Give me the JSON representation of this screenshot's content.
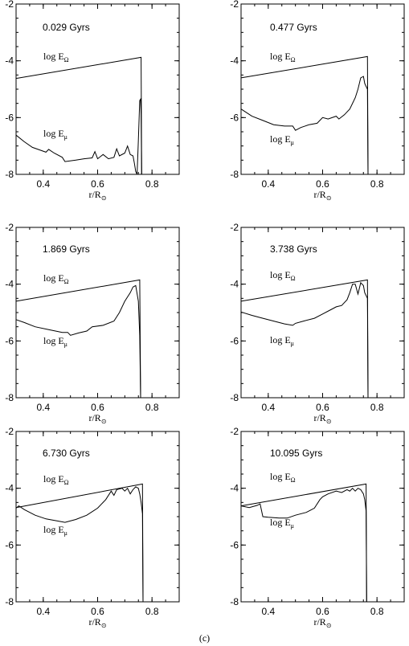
{
  "figure": {
    "caption": "(c)"
  },
  "chart_data": [
    {
      "type": "line",
      "annotation": "0.029 Gyrs",
      "xlabel": "r/R⊙",
      "xlim": [
        0.3,
        0.9
      ],
      "ylim": [
        -8,
        -2
      ],
      "xticks": [
        "0.4",
        "0.6",
        "0.8"
      ],
      "yticks": [
        "-2",
        "-4",
        "-6",
        "-8"
      ],
      "curve_labels": {
        "omega": "log EΩ",
        "mu": "log Eμ"
      },
      "series": [
        {
          "key": "omega",
          "points": [
            [
              0.3,
              -4.62
            ],
            [
              0.76,
              -3.88
            ],
            [
              0.762,
              -8.0
            ]
          ]
        },
        {
          "key": "mu",
          "points": [
            [
              0.3,
              -6.62
            ],
            [
              0.33,
              -6.85
            ],
            [
              0.36,
              -7.05
            ],
            [
              0.39,
              -7.15
            ],
            [
              0.41,
              -7.22
            ],
            [
              0.42,
              -7.12
            ],
            [
              0.44,
              -7.25
            ],
            [
              0.47,
              -7.4
            ],
            [
              0.48,
              -7.55
            ],
            [
              0.52,
              -7.5
            ],
            [
              0.55,
              -7.45
            ],
            [
              0.58,
              -7.42
            ],
            [
              0.59,
              -7.2
            ],
            [
              0.6,
              -7.45
            ],
            [
              0.62,
              -7.3
            ],
            [
              0.64,
              -7.45
            ],
            [
              0.66,
              -7.4
            ],
            [
              0.67,
              -7.1
            ],
            [
              0.68,
              -7.35
            ],
            [
              0.7,
              -7.25
            ],
            [
              0.71,
              -7.0
            ],
            [
              0.72,
              -7.3
            ],
            [
              0.73,
              -7.35
            ],
            [
              0.735,
              -7.6
            ],
            [
              0.74,
              -7.9
            ],
            [
              0.745,
              -8.0
            ],
            [
              0.75,
              -6.8
            ],
            [
              0.755,
              -5.4
            ],
            [
              0.758,
              -5.35
            ],
            [
              0.76,
              -5.9
            ],
            [
              0.762,
              -8.0
            ]
          ]
        }
      ]
    },
    {
      "type": "line",
      "annotation": "0.477 Gyrs",
      "xlabel": "r/R⊙",
      "xlim": [
        0.3,
        0.9
      ],
      "ylim": [
        -8,
        -2
      ],
      "xticks": [
        "0.4",
        "0.6",
        "0.8"
      ],
      "yticks": [
        "-2",
        "-4",
        "-6",
        "-8"
      ],
      "curve_labels": {
        "omega": "log EΩ",
        "mu": "log Eμ"
      },
      "series": [
        {
          "key": "omega",
          "points": [
            [
              0.3,
              -4.6
            ],
            [
              0.765,
              -3.85
            ],
            [
              0.767,
              -8.0
            ]
          ]
        },
        {
          "key": "mu",
          "points": [
            [
              0.3,
              -5.7
            ],
            [
              0.34,
              -5.95
            ],
            [
              0.38,
              -6.1
            ],
            [
              0.42,
              -6.25
            ],
            [
              0.46,
              -6.3
            ],
            [
              0.49,
              -6.3
            ],
            [
              0.5,
              -6.45
            ],
            [
              0.52,
              -6.35
            ],
            [
              0.55,
              -6.25
            ],
            [
              0.58,
              -6.2
            ],
            [
              0.6,
              -6.0
            ],
            [
              0.62,
              -6.05
            ],
            [
              0.65,
              -5.95
            ],
            [
              0.66,
              -6.05
            ],
            [
              0.68,
              -5.9
            ],
            [
              0.7,
              -5.7
            ],
            [
              0.72,
              -5.3
            ],
            [
              0.73,
              -5.0
            ],
            [
              0.74,
              -4.6
            ],
            [
              0.75,
              -4.55
            ],
            [
              0.755,
              -4.8
            ],
            [
              0.76,
              -4.9
            ],
            [
              0.765,
              -5.0
            ],
            [
              0.767,
              -8.0
            ]
          ]
        }
      ]
    },
    {
      "type": "line",
      "annotation": "1.869 Gyrs",
      "xlabel": "r/R⊙",
      "xlim": [
        0.3,
        0.9
      ],
      "ylim": [
        -8,
        -2
      ],
      "xticks": [
        "0.4",
        "0.6",
        "0.8"
      ],
      "yticks": [
        "-2",
        "-4",
        "-6",
        "-8"
      ],
      "curve_labels": {
        "omega": "log EΩ",
        "mu": "log Eμ"
      },
      "series": [
        {
          "key": "omega",
          "points": [
            [
              0.3,
              -4.6
            ],
            [
              0.755,
              -3.85
            ],
            [
              0.758,
              -8.0
            ]
          ]
        },
        {
          "key": "mu",
          "points": [
            [
              0.3,
              -5.25
            ],
            [
              0.33,
              -5.35
            ],
            [
              0.37,
              -5.5
            ],
            [
              0.42,
              -5.6
            ],
            [
              0.47,
              -5.7
            ],
            [
              0.49,
              -5.7
            ],
            [
              0.5,
              -5.8
            ],
            [
              0.53,
              -5.72
            ],
            [
              0.56,
              -5.65
            ],
            [
              0.58,
              -5.5
            ],
            [
              0.62,
              -5.45
            ],
            [
              0.66,
              -5.3
            ],
            [
              0.68,
              -5.0
            ],
            [
              0.7,
              -4.6
            ],
            [
              0.72,
              -4.3
            ],
            [
              0.73,
              -4.1
            ],
            [
              0.74,
              -4.05
            ],
            [
              0.75,
              -4.6
            ],
            [
              0.755,
              -5.8
            ],
            [
              0.758,
              -8.0
            ]
          ]
        }
      ]
    },
    {
      "type": "line",
      "annotation": "3.738 Gyrs",
      "xlabel": "r/R⊙",
      "xlim": [
        0.3,
        0.9
      ],
      "ylim": [
        -8,
        -2
      ],
      "xticks": [
        "0.4",
        "0.6",
        "0.8"
      ],
      "yticks": [
        "-2",
        "-4",
        "-6",
        "-8"
      ],
      "curve_labels": {
        "omega": "log EΩ",
        "mu": "log Eμ"
      },
      "series": [
        {
          "key": "omega",
          "points": [
            [
              0.3,
              -4.6
            ],
            [
              0.765,
              -3.85
            ],
            [
              0.767,
              -8.0
            ]
          ]
        },
        {
          "key": "mu",
          "points": [
            [
              0.3,
              -4.98
            ],
            [
              0.34,
              -5.1
            ],
            [
              0.38,
              -5.2
            ],
            [
              0.42,
              -5.3
            ],
            [
              0.46,
              -5.4
            ],
            [
              0.49,
              -5.45
            ],
            [
              0.5,
              -5.38
            ],
            [
              0.53,
              -5.3
            ],
            [
              0.57,
              -5.2
            ],
            [
              0.6,
              -5.05
            ],
            [
              0.63,
              -4.9
            ],
            [
              0.65,
              -4.8
            ],
            [
              0.67,
              -4.75
            ],
            [
              0.69,
              -4.55
            ],
            [
              0.7,
              -4.3
            ],
            [
              0.71,
              -4.0
            ],
            [
              0.72,
              -4.0
            ],
            [
              0.73,
              -4.35
            ],
            [
              0.74,
              -3.95
            ],
            [
              0.75,
              -4.05
            ],
            [
              0.755,
              -4.3
            ],
            [
              0.76,
              -4.4
            ],
            [
              0.765,
              -4.5
            ],
            [
              0.767,
              -8.0
            ]
          ]
        }
      ]
    },
    {
      "type": "line",
      "annotation": "6.730 Gyrs",
      "xlabel": "r/R⊙",
      "xlim": [
        0.3,
        0.9
      ],
      "ylim": [
        -8,
        -2
      ],
      "xticks": [
        "0.4",
        "0.6",
        "0.8"
      ],
      "yticks": [
        "-2",
        "-4",
        "-6",
        "-8"
      ],
      "curve_labels": {
        "omega": "log EΩ",
        "mu": "log Eμ"
      },
      "series": [
        {
          "key": "omega",
          "points": [
            [
              0.3,
              -4.68
            ],
            [
              0.765,
              -3.85
            ],
            [
              0.767,
              -8.0
            ]
          ]
        },
        {
          "key": "mu",
          "points": [
            [
              0.3,
              -4.7
            ],
            [
              0.31,
              -4.62
            ],
            [
              0.33,
              -4.75
            ],
            [
              0.37,
              -4.95
            ],
            [
              0.41,
              -5.08
            ],
            [
              0.45,
              -5.15
            ],
            [
              0.48,
              -5.2
            ],
            [
              0.52,
              -5.1
            ],
            [
              0.56,
              -4.95
            ],
            [
              0.6,
              -4.7
            ],
            [
              0.63,
              -4.4
            ],
            [
              0.65,
              -4.1
            ],
            [
              0.66,
              -4.25
            ],
            [
              0.67,
              -4.05
            ],
            [
              0.69,
              -4.0
            ],
            [
              0.7,
              -4.1
            ],
            [
              0.71,
              -4.0
            ],
            [
              0.72,
              -4.2
            ],
            [
              0.73,
              -4.05
            ],
            [
              0.74,
              -3.95
            ],
            [
              0.75,
              -4.0
            ],
            [
              0.755,
              -4.2
            ],
            [
              0.76,
              -4.5
            ],
            [
              0.765,
              -4.9
            ],
            [
              0.767,
              -8.0
            ]
          ]
        }
      ]
    },
    {
      "type": "line",
      "annotation": "10.095 Gyrs",
      "xlabel": "r/R⊙",
      "xlim": [
        0.3,
        0.9
      ],
      "ylim": [
        -8,
        -2
      ],
      "xticks": [
        "0.4",
        "0.6",
        "0.8"
      ],
      "yticks": [
        "-2",
        "-4",
        "-6",
        "-8"
      ],
      "curve_labels": {
        "omega": "log EΩ",
        "mu": "log Eμ"
      },
      "series": [
        {
          "key": "omega",
          "points": [
            [
              0.3,
              -4.62
            ],
            [
              0.76,
              -3.85
            ],
            [
              0.762,
              -8.0
            ]
          ]
        },
        {
          "key": "mu",
          "points": [
            [
              0.3,
              -4.62
            ],
            [
              0.33,
              -4.68
            ],
            [
              0.36,
              -4.6
            ],
            [
              0.37,
              -4.55
            ],
            [
              0.38,
              -5.0
            ],
            [
              0.4,
              -5.02
            ],
            [
              0.44,
              -5.05
            ],
            [
              0.47,
              -5.05
            ],
            [
              0.5,
              -4.95
            ],
            [
              0.54,
              -4.85
            ],
            [
              0.57,
              -4.7
            ],
            [
              0.59,
              -4.4
            ],
            [
              0.6,
              -4.3
            ],
            [
              0.62,
              -4.2
            ],
            [
              0.65,
              -4.1
            ],
            [
              0.67,
              -4.15
            ],
            [
              0.69,
              -4.05
            ],
            [
              0.7,
              -4.1
            ],
            [
              0.71,
              -4.0
            ],
            [
              0.72,
              -4.1
            ],
            [
              0.73,
              -4.0
            ],
            [
              0.74,
              -4.05
            ],
            [
              0.75,
              -4.2
            ],
            [
              0.755,
              -4.4
            ],
            [
              0.76,
              -4.8
            ],
            [
              0.762,
              -8.0
            ]
          ]
        }
      ]
    }
  ]
}
